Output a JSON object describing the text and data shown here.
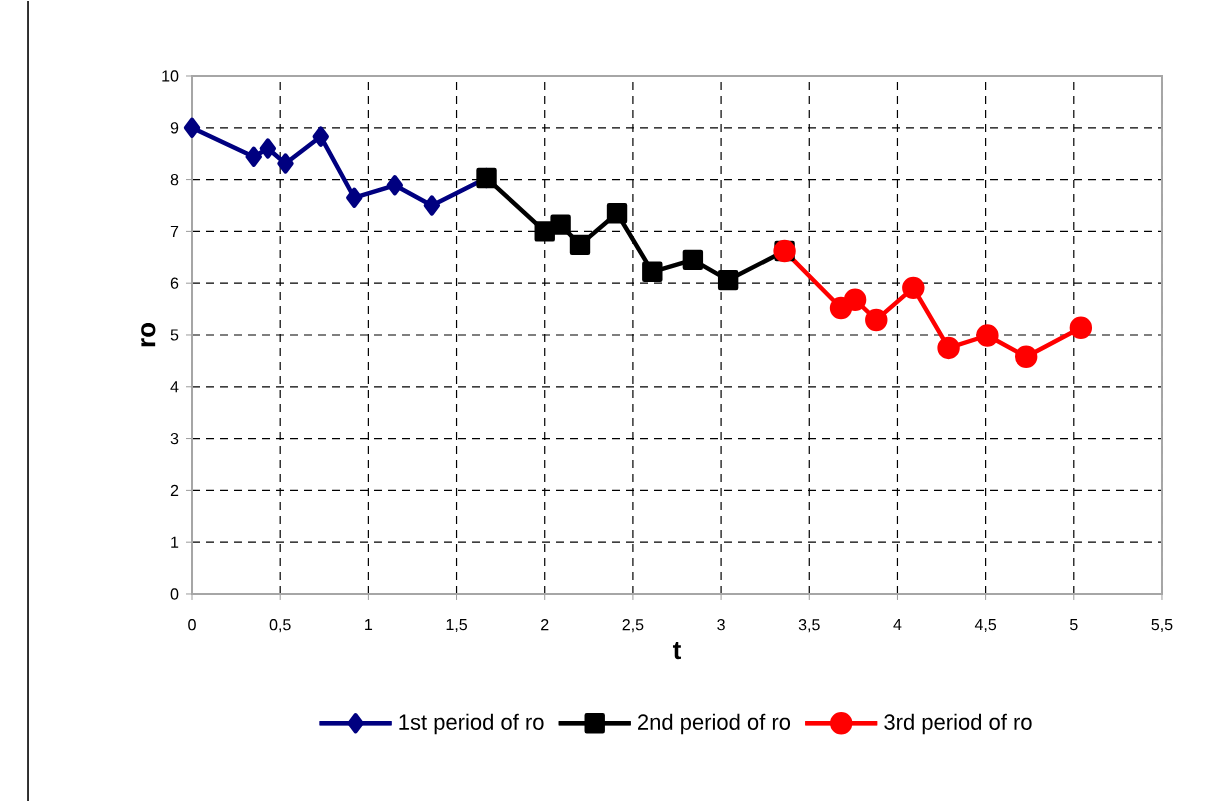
{
  "chart_data": {
    "type": "line",
    "xlabel": "t",
    "ylabel": "ro",
    "xlim": [
      0,
      5.5
    ],
    "ylim": [
      0,
      10
    ],
    "xticks": [
      0,
      {
        "value": 0.5,
        "label": "0,5"
      },
      1,
      {
        "value": 1.5,
        "label": "1,5"
      },
      2,
      {
        "value": 2.5,
        "label": "2,5"
      },
      3,
      {
        "value": 3.5,
        "label": "3,5"
      },
      4,
      {
        "value": 4.5,
        "label": "4,5"
      },
      5,
      {
        "value": 5.5,
        "label": "5,5"
      }
    ],
    "yticks": [
      0,
      1,
      2,
      3,
      4,
      5,
      6,
      7,
      8,
      9,
      10
    ],
    "grid": true,
    "legend": "bottom",
    "line_style": "solid",
    "series": [
      {
        "name": "1st period of  ro",
        "color": "#000080",
        "marker": "diamond",
        "x": [
          0,
          0.35,
          0.43,
          0.53,
          0.73,
          0.92,
          1.15,
          1.36,
          1.67
        ],
        "values": [
          9.0,
          8.44,
          8.6,
          8.31,
          8.83,
          7.65,
          7.89,
          7.5,
          8.03
        ]
      },
      {
        "name": "2nd period of  ro",
        "color": "#000000",
        "marker": "square",
        "x": [
          1.67,
          2.0,
          2.09,
          2.2,
          2.41,
          2.61,
          2.84,
          3.04,
          3.36
        ],
        "values": [
          8.03,
          7.0,
          7.13,
          6.74,
          7.35,
          6.22,
          6.45,
          6.06,
          6.62
        ]
      },
      {
        "name": "3rd period of  ro",
        "color": "#ff0000",
        "marker": "circle",
        "x": [
          3.36,
          3.68,
          3.76,
          3.88,
          4.09,
          4.29,
          4.51,
          4.73,
          5.04
        ],
        "values": [
          6.62,
          5.52,
          5.68,
          5.29,
          5.91,
          4.75,
          4.99,
          4.58,
          5.14
        ]
      }
    ]
  }
}
